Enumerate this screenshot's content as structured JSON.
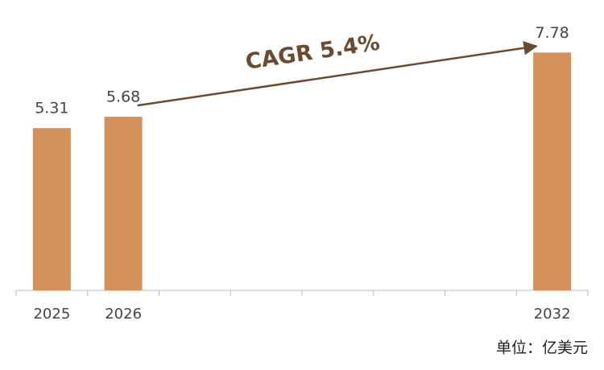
{
  "chart_data": {
    "type": "bar",
    "categories": [
      "2025",
      "2026",
      null,
      null,
      null,
      null,
      null,
      "2032"
    ],
    "values": [
      5.31,
      5.68,
      null,
      null,
      null,
      null,
      null,
      7.78
    ],
    "color": "#d4915a",
    "ylim": [
      0,
      9.5
    ],
    "annotation": "CAGR 5.4%",
    "unit_note": "单位：亿美元"
  }
}
